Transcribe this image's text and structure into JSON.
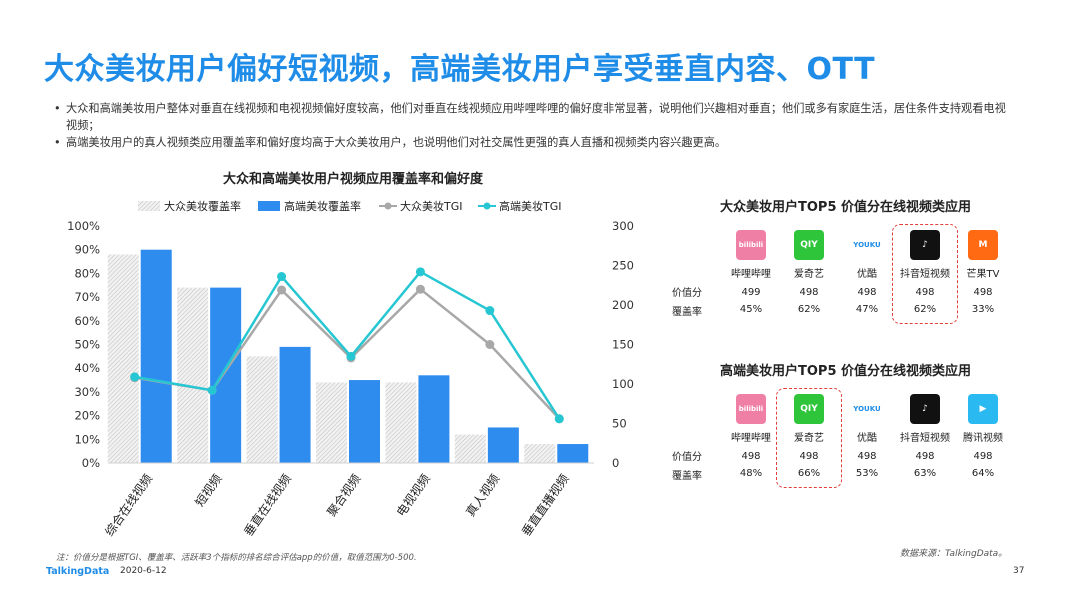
{
  "page": {
    "title": "大众美妆用户偏好短视频，高端美妆用户享受垂直内容、OTT",
    "bullets": [
      "大众和高端美妆用户整体对垂直在线视频和电视视频偏好度较高，他们对垂直在线视频应用哔哩哔哩的偏好度非常显著，说明他们兴趣相对垂直；他们或多有家庭生活，居住条件支持观看电视视频；",
      "高端美妆用户的真人视频类应用覆盖率和偏好度均高于大众美妆用户，也说明他们对社交属性更强的真人直播和视频类内容兴趣更高。"
    ],
    "footnote": "注：价值分是根据TGI、覆盖率、活跃率3个指标的排名综合评估app的价值，取值范围为0-500.",
    "source": "数据来源：TalkingData。",
    "logo": "TalkingData",
    "date": "2020-6-12",
    "page_number": "37"
  },
  "chart_data": {
    "type": "bar",
    "title": "大众和高端美妆用户视频应用覆盖率和偏好度",
    "categories": [
      "综合在线视频",
      "短视频",
      "垂直在线视频",
      "聚合视频",
      "电视视频",
      "真人视频",
      "垂直直播视频"
    ],
    "left_axis": {
      "ylim": [
        0,
        100
      ],
      "ticks": [
        "0%",
        "10%",
        "20%",
        "30%",
        "40%",
        "50%",
        "60%",
        "70%",
        "80%",
        "90%",
        "100%"
      ]
    },
    "right_axis": {
      "ylim": [
        0,
        300
      ],
      "ticks": [
        "0",
        "50",
        "100",
        "150",
        "200",
        "250",
        "300"
      ]
    },
    "series": [
      {
        "name": "大众美妆覆盖率",
        "kind": "bar",
        "axis": "left",
        "color": "#d9d9d9",
        "values": [
          88,
          74,
          45,
          34,
          34,
          12,
          8
        ]
      },
      {
        "name": "高端美妆覆盖率",
        "kind": "bar",
        "axis": "left",
        "color": "#2f8cef",
        "values": [
          90,
          74,
          49,
          35,
          37,
          15,
          8
        ]
      },
      {
        "name": "大众美妆TGI",
        "kind": "line",
        "axis": "right",
        "color": "#a8a8a8",
        "values": [
          108,
          92,
          219,
          133,
          220,
          150,
          56
        ]
      },
      {
        "name": "高端美妆TGI",
        "kind": "line",
        "axis": "right",
        "color": "#26c6d2",
        "values": [
          109,
          92,
          236,
          135,
          242,
          193,
          56
        ]
      }
    ],
    "legend_position": "top",
    "grid": false
  },
  "rankings": [
    {
      "title": "大众美妆用户TOP5 价值分在线视频类应用",
      "value_label": "价值分",
      "coverage_label": "覆盖率",
      "highlight_index": 3,
      "apps": [
        {
          "name": "哔哩哔哩",
          "icon": "bilibili-icon",
          "icon_text": "bilibili",
          "color": "#f07fa5",
          "value": "499",
          "coverage": "45%"
        },
        {
          "name": "爱奇艺",
          "icon": "iqiyi-icon",
          "icon_text": "QIY",
          "color": "#2ec53a",
          "value": "498",
          "coverage": "62%"
        },
        {
          "name": "优酷",
          "icon": "youku-icon",
          "icon_text": "YOUKU",
          "color": "#ffffff",
          "value": "498",
          "coverage": "47%"
        },
        {
          "name": "抖音短视频",
          "icon": "douyin-icon",
          "icon_text": "♪",
          "color": "#111111",
          "value": "498",
          "coverage": "62%"
        },
        {
          "name": "芒果TV",
          "icon": "mangotv-icon",
          "icon_text": "M",
          "color": "#ff6a13",
          "value": "498",
          "coverage": "33%"
        }
      ]
    },
    {
      "title": "高端美妆用户TOP5 价值分在线视频类应用",
      "value_label": "价值分",
      "coverage_label": "覆盖率",
      "highlight_index": 1,
      "apps": [
        {
          "name": "哔哩哔哩",
          "icon": "bilibili-icon",
          "icon_text": "bilibili",
          "color": "#f07fa5",
          "value": "498",
          "coverage": "48%"
        },
        {
          "name": "爱奇艺",
          "icon": "iqiyi-icon",
          "icon_text": "QIY",
          "color": "#2ec53a",
          "value": "498",
          "coverage": "66%"
        },
        {
          "name": "优酷",
          "icon": "youku-icon",
          "icon_text": "YOUKU",
          "color": "#ffffff",
          "value": "498",
          "coverage": "53%"
        },
        {
          "name": "抖音短视频",
          "icon": "douyin-icon",
          "icon_text": "♪",
          "color": "#111111",
          "value": "498",
          "coverage": "63%"
        },
        {
          "name": "腾讯视频",
          "icon": "tencent-video-icon",
          "icon_text": "▶",
          "color": "#2ab9f0",
          "value": "498",
          "coverage": "64%"
        }
      ]
    }
  ]
}
